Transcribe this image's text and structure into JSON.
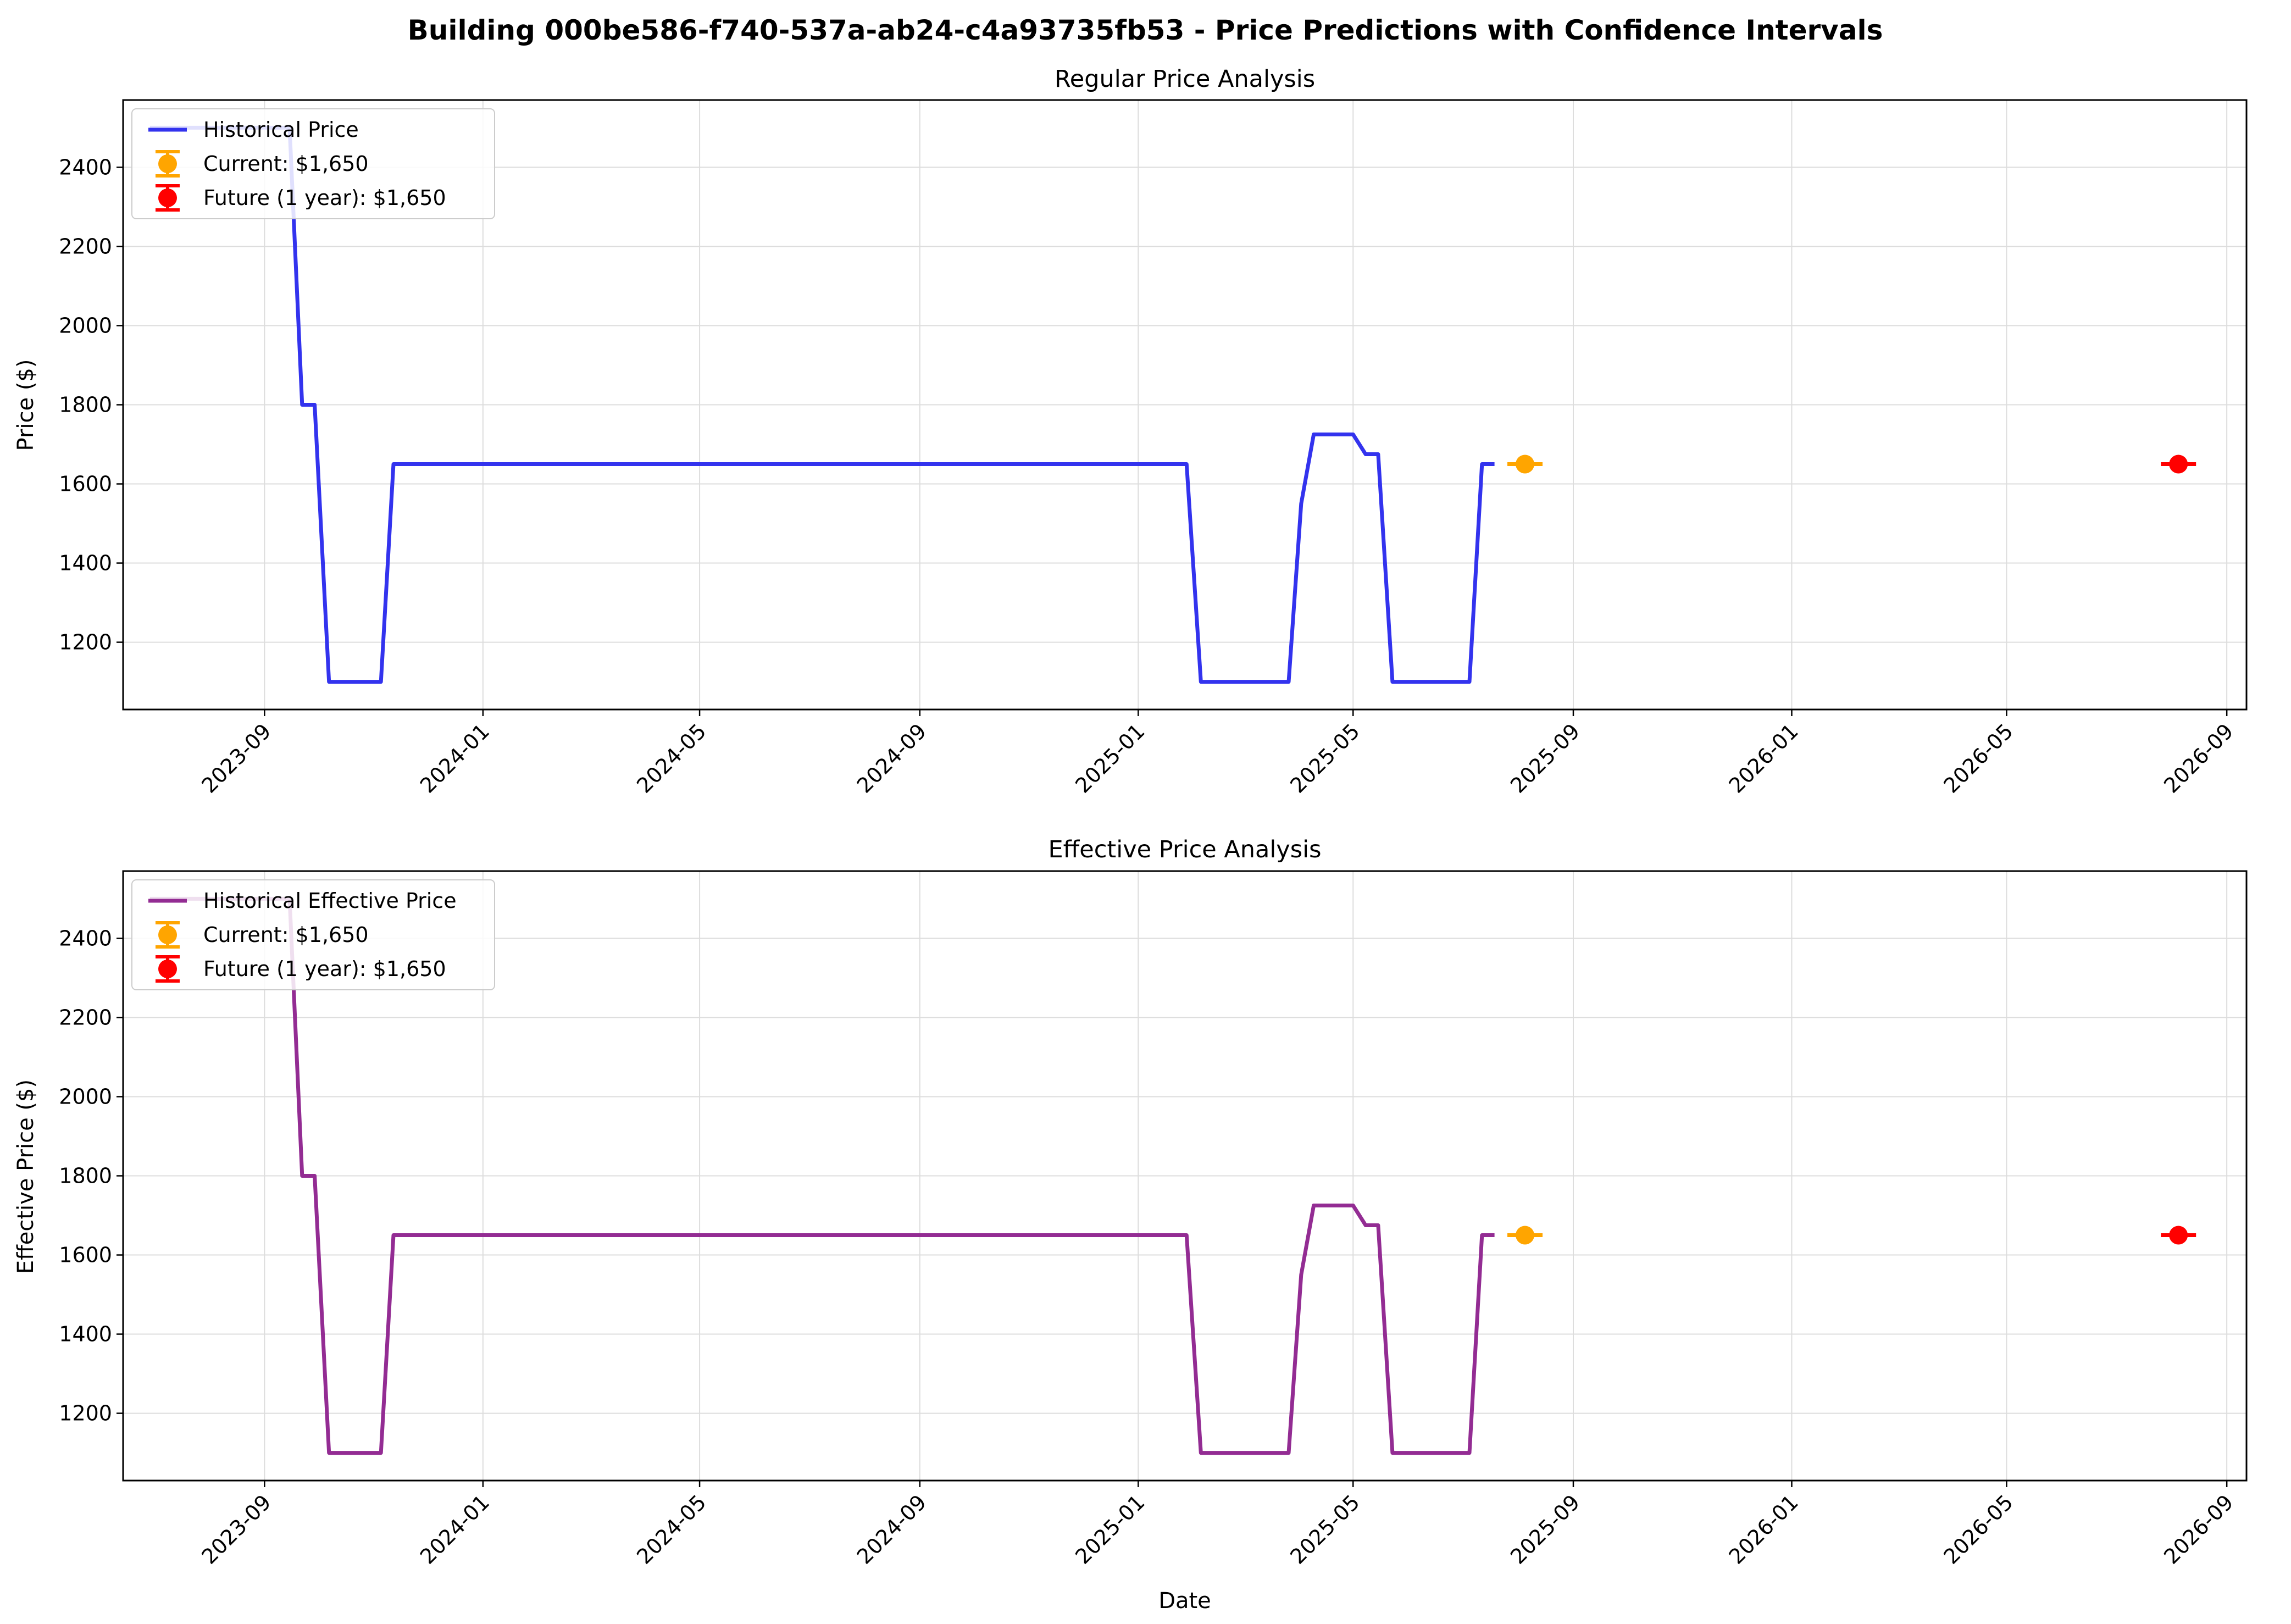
{
  "suptitle": "Building 000be586-f740-537a-ab24-c4a93735fb53 - Price Predictions with Confidence Intervals",
  "colors": {
    "regular_line": "#3333ee",
    "effective_line": "#932c93",
    "current": "#ffa500",
    "future": "#ff0000",
    "grid": "#dddddd"
  },
  "chart_data": [
    {
      "type": "line",
      "title": "Regular Price Analysis",
      "xlabel": "",
      "ylabel": "Price ($)",
      "xlim": [
        "2023-06-14",
        "2026-09-12"
      ],
      "ylim": [
        1030,
        2570
      ],
      "x_ticks": [
        "2023-09-01",
        "2024-01-01",
        "2024-05-01",
        "2024-09-01",
        "2025-01-01",
        "2025-05-01",
        "2025-09-01",
        "2026-01-01",
        "2026-05-01",
        "2026-09-01"
      ],
      "y_ticks": [
        1200,
        1400,
        1600,
        1800,
        2000,
        2200,
        2400
      ],
      "grid": true,
      "legend_position": "upper left",
      "series": [
        {
          "name": "Historical Price",
          "kind": "line",
          "points": [
            [
              "2023-06-29",
              2500
            ],
            [
              "2023-09-15",
              2500
            ],
            [
              "2023-09-22",
              1800
            ],
            [
              "2023-09-29",
              1800
            ],
            [
              "2023-10-07",
              1100
            ],
            [
              "2023-11-05",
              1100
            ],
            [
              "2023-11-12",
              1650
            ],
            [
              "2025-01-28",
              1650
            ],
            [
              "2025-02-05",
              1100
            ],
            [
              "2025-03-26",
              1100
            ],
            [
              "2025-04-02",
              1550
            ],
            [
              "2025-04-09",
              1725
            ],
            [
              "2025-05-01",
              1725
            ],
            [
              "2025-05-08",
              1675
            ],
            [
              "2025-05-15",
              1675
            ],
            [
              "2025-05-23",
              1100
            ],
            [
              "2025-07-05",
              1100
            ],
            [
              "2025-07-12",
              1650
            ],
            [
              "2025-07-19",
              1650
            ]
          ]
        },
        {
          "name": "Current: $1,650",
          "kind": "errorbar",
          "x": "2025-08-05",
          "y": 1650
        },
        {
          "name": "Future (1 year): $1,650",
          "kind": "errorbar",
          "x": "2026-08-05",
          "y": 1650
        }
      ]
    },
    {
      "type": "line",
      "title": "Effective Price Analysis",
      "xlabel": "Date",
      "ylabel": "Effective Price ($)",
      "xlim": [
        "2023-06-14",
        "2026-09-12"
      ],
      "ylim": [
        1030,
        2570
      ],
      "x_ticks": [
        "2023-09-01",
        "2024-01-01",
        "2024-05-01",
        "2024-09-01",
        "2025-01-01",
        "2025-05-01",
        "2025-09-01",
        "2026-01-01",
        "2026-05-01",
        "2026-09-01"
      ],
      "y_ticks": [
        1200,
        1400,
        1600,
        1800,
        2000,
        2200,
        2400
      ],
      "grid": true,
      "legend_position": "upper left",
      "series": [
        {
          "name": "Historical Effective Price",
          "kind": "line",
          "points": [
            [
              "2023-06-29",
              2500
            ],
            [
              "2023-09-15",
              2500
            ],
            [
              "2023-09-22",
              1800
            ],
            [
              "2023-09-29",
              1800
            ],
            [
              "2023-10-07",
              1100
            ],
            [
              "2023-11-05",
              1100
            ],
            [
              "2023-11-12",
              1650
            ],
            [
              "2025-01-28",
              1650
            ],
            [
              "2025-02-05",
              1100
            ],
            [
              "2025-03-26",
              1100
            ],
            [
              "2025-04-02",
              1550
            ],
            [
              "2025-04-09",
              1725
            ],
            [
              "2025-05-01",
              1725
            ],
            [
              "2025-05-08",
              1675
            ],
            [
              "2025-05-15",
              1675
            ],
            [
              "2025-05-23",
              1100
            ],
            [
              "2025-07-05",
              1100
            ],
            [
              "2025-07-12",
              1650
            ],
            [
              "2025-07-19",
              1650
            ]
          ]
        },
        {
          "name": "Current: $1,650",
          "kind": "errorbar",
          "x": "2025-08-05",
          "y": 1650
        },
        {
          "name": "Future (1 year): $1,650",
          "kind": "errorbar",
          "x": "2026-08-05",
          "y": 1650
        }
      ]
    }
  ]
}
